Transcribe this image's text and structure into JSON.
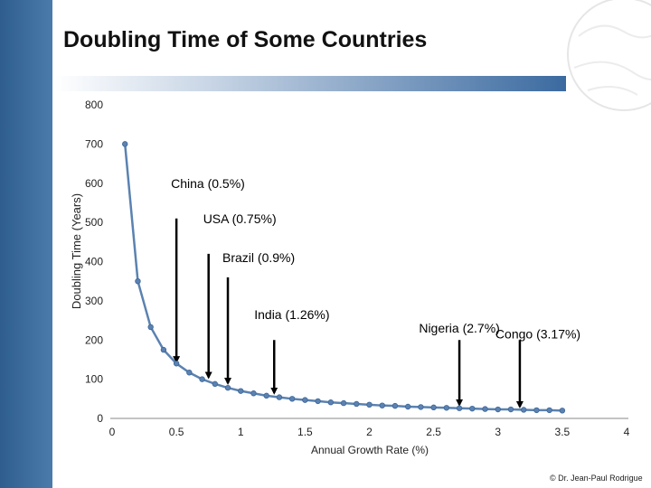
{
  "slide": {
    "title": "Doubling Time of Some Countries",
    "credit": "© Dr. Jean-Paul Rodrigue"
  },
  "colors": {
    "accent": "#3b6aa0",
    "series": "#5b82b0"
  },
  "chart_data": {
    "type": "scatter",
    "title": "",
    "xlabel": "Annual Growth Rate (%)",
    "ylabel": "Doubling Time (Years)",
    "xlim": [
      0,
      4
    ],
    "ylim": [
      0,
      800
    ],
    "x_ticks": [
      0,
      0.5,
      1,
      1.5,
      2,
      2.5,
      3,
      3.5,
      4
    ],
    "x_tick_labels": [
      "0",
      "0.5",
      "1",
      "1.5",
      "2",
      "2.5",
      "3",
      "3.5",
      "4"
    ],
    "y_ticks": [
      0,
      100,
      200,
      300,
      400,
      500,
      600,
      700,
      800
    ],
    "y_tick_labels": [
      "0",
      "100",
      "200",
      "300",
      "400",
      "500",
      "600",
      "700",
      "800"
    ],
    "series": [
      {
        "name": "Doubling time",
        "x": [
          0.1,
          0.2,
          0.3,
          0.4,
          0.5,
          0.6,
          0.7,
          0.8,
          0.9,
          1.0,
          1.1,
          1.2,
          1.3,
          1.4,
          1.5,
          1.6,
          1.7,
          1.8,
          1.9,
          2.0,
          2.1,
          2.2,
          2.3,
          2.4,
          2.5,
          2.6,
          2.7,
          2.8,
          2.9,
          3.0,
          3.1,
          3.2,
          3.3,
          3.4,
          3.5
        ],
        "y": [
          700,
          350,
          233,
          175,
          140,
          117,
          100,
          88,
          78,
          70,
          64,
          58,
          54,
          50,
          47,
          44,
          41,
          39,
          37,
          35,
          33,
          32,
          30,
          29,
          28,
          27,
          26,
          25,
          24,
          23,
          23,
          22,
          21,
          21,
          20
        ]
      }
    ],
    "annotations": [
      {
        "label": "China (0.5%)",
        "x": 0.5,
        "label_y": 600,
        "arrow_from": 510,
        "arrow_to": 145
      },
      {
        "label": "USA (0.75%)",
        "x": 0.75,
        "label_y": 510,
        "arrow_from": 420,
        "arrow_to": 105
      },
      {
        "label": "Brazil (0.9%)",
        "x": 0.9,
        "label_y": 410,
        "arrow_from": 360,
        "arrow_to": 90
      },
      {
        "label": "India (1.26%)",
        "x": 1.26,
        "label_y": 265,
        "arrow_from": 200,
        "arrow_to": 65
      },
      {
        "label": "Nigeria (2.7%)",
        "x": 2.7,
        "label_y": 230,
        "arrow_from": 200,
        "arrow_to": 35
      },
      {
        "label": "Congo (3.17%)",
        "x": 3.17,
        "label_y": 215,
        "arrow_from": 200,
        "arrow_to": 30
      }
    ]
  }
}
